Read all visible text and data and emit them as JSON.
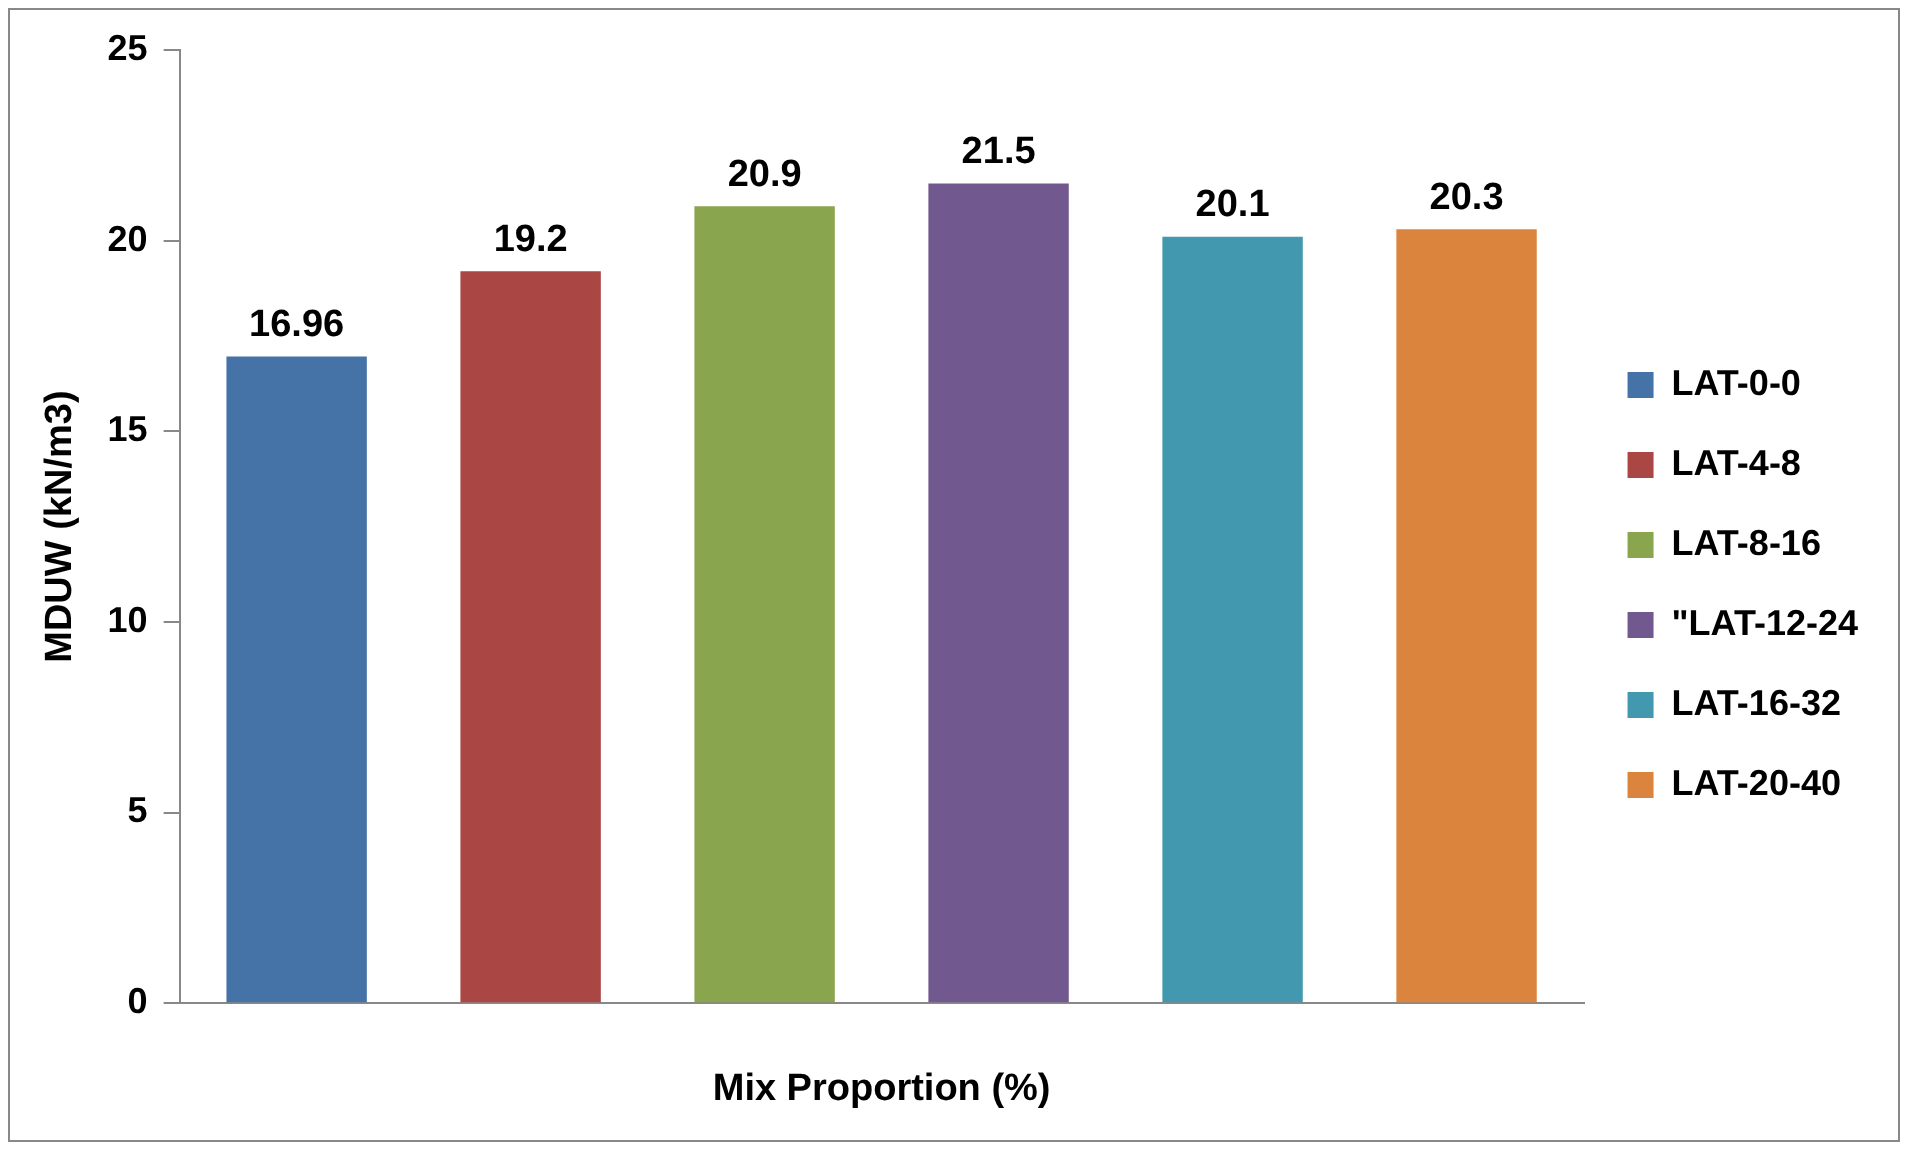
{
  "chart_data": {
    "type": "bar",
    "xlabel": "Mix Proportion (%)",
    "ylabel": "MDUW (kN/m3)",
    "categories": [
      null
    ],
    "series": [
      {
        "name": "LAT-0-0",
        "color": "#4572a7",
        "values": [
          16.96
        ]
      },
      {
        "name": "LAT-4-8",
        "color": "#aa4643",
        "values": [
          19.2
        ]
      },
      {
        "name": "LAT-8-16",
        "color": "#89a54e",
        "values": [
          20.9
        ]
      },
      {
        "name": "\"LAT-12-24",
        "color": "#71588f",
        "values": [
          21.5
        ]
      },
      {
        "name": "LAT-16-32",
        "color": "#4198af",
        "values": [
          20.1
        ]
      },
      {
        "name": "LAT-20-40",
        "color": "#db843d",
        "values": [
          20.3
        ]
      }
    ],
    "ylim": [
      0,
      25
    ],
    "yticks": [
      0,
      5,
      10,
      15,
      20,
      25
    ],
    "grid": false,
    "legend": "right",
    "data_labels": true
  }
}
